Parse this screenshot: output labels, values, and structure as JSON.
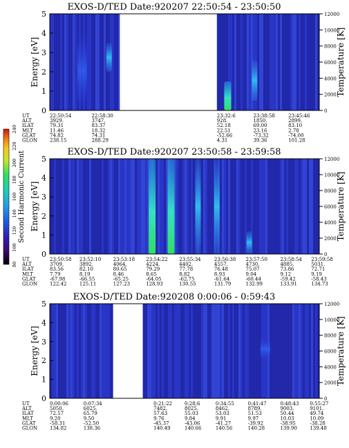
{
  "chart_data": [
    {
      "type": "heatmap",
      "title": "EXOS-D/TED   Date:920207  22:50:54 - 23:50:50",
      "ylabel": "Energy [eV]",
      "ylabel_right": "Temperature [K]",
      "ylim": [
        0,
        5
      ],
      "yticks": [
        "0",
        "1",
        "2",
        "3",
        "4",
        "5"
      ],
      "ylim_right": [
        0,
        12000
      ],
      "yticks_right": [
        "0",
        "2000",
        "4000",
        "6000",
        "8000",
        "10000",
        "12000"
      ],
      "data_gaps": [
        {
          "from_frac": 0.26,
          "to_frac": 0.62
        }
      ],
      "row_labels": [
        "UT",
        "ALT",
        "ILAT",
        "MLT",
        "GLAT",
        "GLON"
      ],
      "columns": [
        {
          "UT": "22:50:54",
          "ALT": "3929.",
          "ILAT": "79.31",
          "MLT": "11.46",
          "GLAT": "74.82",
          "GLON": "238.15"
        },
        {
          "UT": "22:58:30",
          "ALT": "3747.",
          "ILAT": "83.37",
          "MLT": "18.32",
          "GLAT": "74.31",
          "GLON": "288.29"
        },
        {
          "UT": "23:32:6",
          "ALT": "928.",
          "ILAT": "52.18",
          "MLT": "22.51",
          "GLAT": "-52.66",
          "GLON": "4.31"
        },
        {
          "UT": "23:38:58",
          "ALT": "1850.",
          "ILAT": "69.00",
          "MLT": "23.16",
          "GLAT": "-73.32",
          "GLON": "39.36"
        },
        {
          "UT": "23:45:46",
          "ALT": "2899.",
          "ILAT": "83.10",
          "MLT": "2.78",
          "GLAT": "-74.00",
          "GLON": "101.28"
        }
      ],
      "features": [
        {
          "x_frac": 0.12,
          "energy_range": [
            0,
            4.1
          ],
          "level": "low"
        },
        {
          "x_frac": 0.22,
          "energy_range": [
            2.0,
            3.5
          ],
          "level": "mid"
        },
        {
          "x_frac": 0.66,
          "energy_range": [
            0,
            1.5
          ],
          "level": "high"
        },
        {
          "x_frac": 0.76,
          "energy_range": [
            0.5,
            2.6
          ],
          "level": "mid"
        }
      ]
    },
    {
      "type": "heatmap",
      "title": "EXOS-D/TED   Date:920207  23:50:58 - 23:59:58",
      "ylabel": "Energy [eV]",
      "ylabel_right": "Temperature [K]",
      "ylim": [
        0,
        5
      ],
      "yticks": [
        "0",
        "1",
        "2",
        "3",
        "4",
        "5"
      ],
      "ylim_right": [
        0,
        12000
      ],
      "yticks_right": [
        "0",
        "2000",
        "4000",
        "6000",
        "8000",
        "10000",
        "12000"
      ],
      "data_gaps": [],
      "row_labels": [
        "UT",
        "ALT",
        "ILAT",
        "MLT",
        "GLAT",
        "GLON"
      ],
      "columns": [
        {
          "UT": "23:50:58",
          "ALT": "3709.",
          "ILAT": "83.56",
          "MLT": "7.79",
          "GLAT": "-67.98",
          "GLON": "122.42"
        },
        {
          "UT": "23:52:10",
          "ALT": "3892.",
          "ILAT": "82.10",
          "MLT": "8.19",
          "GLAT": "-66.55",
          "GLON": "125.11"
        },
        {
          "UT": "23:53:18",
          "ALT": "4064.",
          "ILAT": "80.65",
          "MLT": "8.46",
          "GLAT": "-65.25",
          "GLON": "127.23"
        },
        {
          "UT": "23:54:22",
          "ALT": "4224.",
          "ILAT": "79.29",
          "MLT": "8.65",
          "GLAT": "-64.05",
          "GLON": "128.93"
        },
        {
          "UT": "23:55:34",
          "ALT": "4402.",
          "ILAT": "77.78",
          "MLT": "8.82",
          "GLAT": "-62.75",
          "GLON": "130.55"
        },
        {
          "UT": "23:56:38",
          "ALT": "4557.",
          "ILAT": "76.48",
          "MLT": "8.93",
          "GLAT": "-61.64",
          "GLON": "131.79"
        },
        {
          "UT": "23:57:50",
          "ALT": "4730.",
          "ILAT": "75.07",
          "MLT": "9.04",
          "GLAT": "-60.44",
          "GLON": "132.99"
        },
        {
          "UT": "23:58:54",
          "ALT": "4885.",
          "ILAT": "73.86",
          "MLT": "9.12",
          "GLAT": "-59.42",
          "GLON": "133.91"
        },
        {
          "UT": "23:59:58",
          "ALT": "5031.",
          "ILAT": "72.71",
          "MLT": "9.19",
          "GLAT": "-58.43",
          "GLON": "134.73"
        }
      ],
      "features": [
        {
          "x_frac": 0.38,
          "energy_range": [
            0,
            5
          ],
          "level": "high"
        },
        {
          "x_frac": 0.45,
          "energy_range": [
            0,
            5
          ],
          "level": "high"
        },
        {
          "x_frac": 0.55,
          "energy_range": [
            0,
            5
          ],
          "level": "mid"
        },
        {
          "x_frac": 0.62,
          "energy_range": [
            0,
            5
          ],
          "level": "mid"
        },
        {
          "x_frac": 0.74,
          "energy_range": [
            0,
            1.2
          ],
          "level": "mid"
        }
      ]
    },
    {
      "type": "heatmap",
      "title": "EXOS-D/TED   Date:920208  0:00:06 - 0:59:43",
      "ylabel": "Energy [eV]",
      "ylabel_right": "Temperature [K]",
      "ylim": [
        0,
        5
      ],
      "yticks": [
        "0",
        "1",
        "2",
        "3",
        "4",
        "5"
      ],
      "ylim_right": [
        0,
        12000
      ],
      "yticks_right": [
        "0",
        "2000",
        "4000",
        "6000",
        "8000",
        "10000",
        "12000"
      ],
      "data_gaps": [
        {
          "from_frac": 0.235,
          "to_frac": 0.345
        }
      ],
      "row_labels": [
        "UT",
        "ALT",
        "ILAT",
        "MLT",
        "GLAT",
        "GLON"
      ],
      "columns": [
        {
          "UT": "0:00:06",
          "ALT": "5050.",
          "ILAT": "72.57",
          "MLT": "9.20",
          "GLAT": "-58.31",
          "GLON": "134.82"
        },
        {
          "UT": "0:07:34",
          "ALT": "6025.",
          "ILAT": "65.79",
          "MLT": "9.50",
          "GLAT": "-52.50",
          "GLON": "138.36"
        },
        {
          "UT": "0:21:22",
          "ALT": "7482.",
          "ILAT": "57.63",
          "MLT": "9.76",
          "GLAT": "-45.37",
          "GLON": "140.49"
        },
        {
          "UT": "0:28:6",
          "ALT": "8025.",
          "ILAT": "55.03",
          "MLT": "9.84",
          "GLAT": "-43.06",
          "GLON": "140.66"
        },
        {
          "UT": "0:34:55",
          "ALT": "8462.",
          "ILAT": "53.03",
          "MLT": "9.91",
          "GLAT": "-41.27",
          "GLON": "140.56"
        },
        {
          "UT": "0:41:47",
          "ALT": "8789.",
          "ILAT": "51.53",
          "MLT": "9.97",
          "GLAT": "-39.92",
          "GLON": "140.28"
        },
        {
          "UT": "0:48:43",
          "ALT": "9003.",
          "ILAT": "50.44",
          "MLT": "10.03",
          "GLAT": "-38.95",
          "GLON": "139.90"
        },
        {
          "UT": "0:55:27",
          "ALT": "9101.",
          "ILAT": "49.74",
          "MLT": "10.09",
          "GLAT": "-38.28",
          "GLON": "139.48"
        }
      ],
      "features": [
        {
          "x_frac": 0.8,
          "energy_range": [
            2.0,
            3.2
          ],
          "level": "low"
        }
      ]
    }
  ],
  "colorbar": {
    "label": "Second Harmonic Current",
    "min": 80,
    "max": 240,
    "ticks": [
      "80",
      "100",
      "120",
      "140",
      "160",
      "180",
      "200",
      "220",
      "240"
    ],
    "colors": [
      "#000000",
      "#3c0a6e",
      "#2a1fb4",
      "#1f5ce6",
      "#22a3e6",
      "#19d2b0",
      "#2ee062",
      "#c8e628",
      "#f4c81e",
      "#f07814",
      "#d2140a"
    ]
  }
}
